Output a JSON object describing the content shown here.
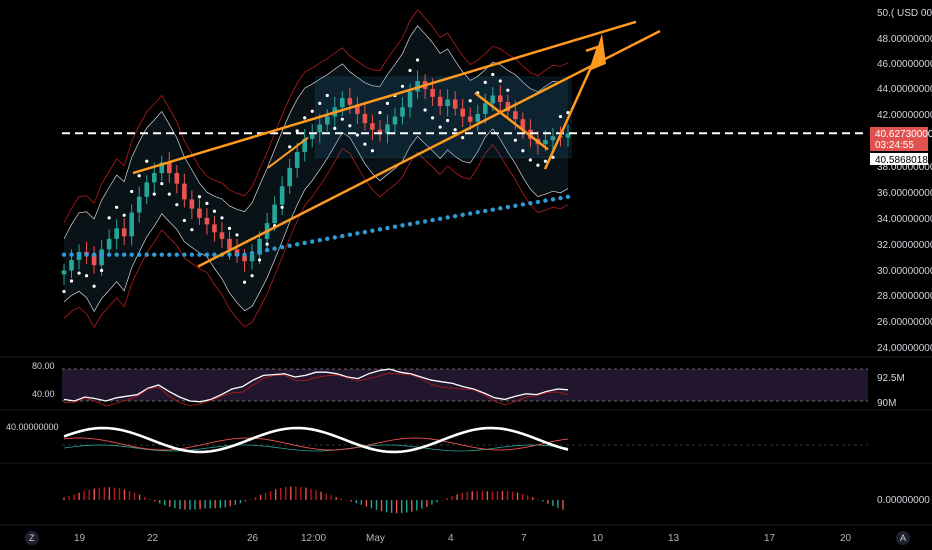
{
  "colors": {
    "background": "#000000",
    "candle_up": "#26a69a",
    "candle_down": "#ef5350",
    "trendline": "#ff9a1f",
    "ema_blue": "#2e9bd6",
    "price_label_bg": "#e0524f",
    "bollinger_red": "#b71c1c",
    "rsi_band": "#2a1a3a"
  },
  "price_axis": {
    "unit_label": "50.( USD 000",
    "ticks": [
      "48.00000000",
      "46.00000000",
      "44.00000000",
      "42.00000000",
      "38.00000000",
      "36.00000000",
      "34.00000000",
      "32.00000000",
      "30.00000000",
      "28.00000000",
      "26.00000000",
      "24.00000000"
    ],
    "current_price": "40.62730000",
    "countdown": "03:24:55",
    "secondary_price": "40.58680184"
  },
  "rsi_panel": {
    "left_labels": [
      "80.00",
      "40.00"
    ],
    "right_labels": [
      "92.5M",
      "90M"
    ]
  },
  "osc_panel": {
    "left_label": "40.00000000"
  },
  "macd_panel": {
    "right_label": "0.00000000"
  },
  "time_axis": {
    "labels": [
      "19",
      "22",
      "26",
      "12:00",
      "May",
      "4",
      "7",
      "10",
      "13",
      "17",
      "20"
    ],
    "left_icon_label": "Z",
    "right_icon_label": "A"
  },
  "chart_data": [
    {
      "type": "candlestick",
      "title": "",
      "x_labels": [
        "19",
        "22",
        "26",
        "12:00",
        "May",
        "4",
        "7",
        "10",
        "13",
        "17",
        "20"
      ],
      "ylim": [
        24,
        50
      ],
      "close": [
        30.2,
        31.0,
        31.6,
        31.4,
        30.6,
        31.8,
        32.6,
        33.4,
        32.8,
        34.6,
        35.8,
        36.9,
        37.6,
        38.4,
        37.6,
        36.8,
        35.6,
        34.9,
        34.2,
        33.7,
        33.1,
        32.6,
        31.8,
        31.3,
        30.9,
        31.4,
        32.6,
        33.8,
        35.2,
        36.6,
        38.0,
        39.2,
        40.2,
        40.7,
        41.3,
        41.9,
        42.6,
        43.3,
        42.8,
        42.1,
        41.4,
        40.9,
        40.6,
        41.3,
        41.9,
        42.6,
        43.8,
        44.6,
        44.0,
        43.4,
        42.7,
        43.2,
        42.5,
        41.9,
        41.5,
        42.1,
        42.9,
        43.5,
        43.0,
        42.3,
        41.7,
        40.9,
        40.2,
        39.8,
        40.1,
        40.4,
        40.3,
        40.6
      ],
      "current_price": 40.6273,
      "trendlines_price": [
        [
          30.5,
          41.2
        ],
        [
          30.5,
          46.6
        ]
      ],
      "ema_200_range": [
        31.4,
        35.8
      ]
    },
    {
      "type": "line",
      "title": "",
      "ylim": [
        35,
        85
      ],
      "reference_lines": [
        80,
        40
      ],
      "values": [
        42,
        40,
        45,
        43,
        40,
        44,
        46,
        48,
        56,
        60,
        52,
        45,
        40,
        39,
        42,
        48,
        55,
        58,
        66,
        72,
        73,
        74,
        70,
        72,
        76,
        76,
        74,
        70,
        68,
        74,
        78,
        80,
        76,
        74,
        70,
        66,
        64,
        62,
        58,
        55,
        50,
        44,
        42,
        46,
        49,
        48,
        52,
        55,
        54
      ]
    }
  ]
}
